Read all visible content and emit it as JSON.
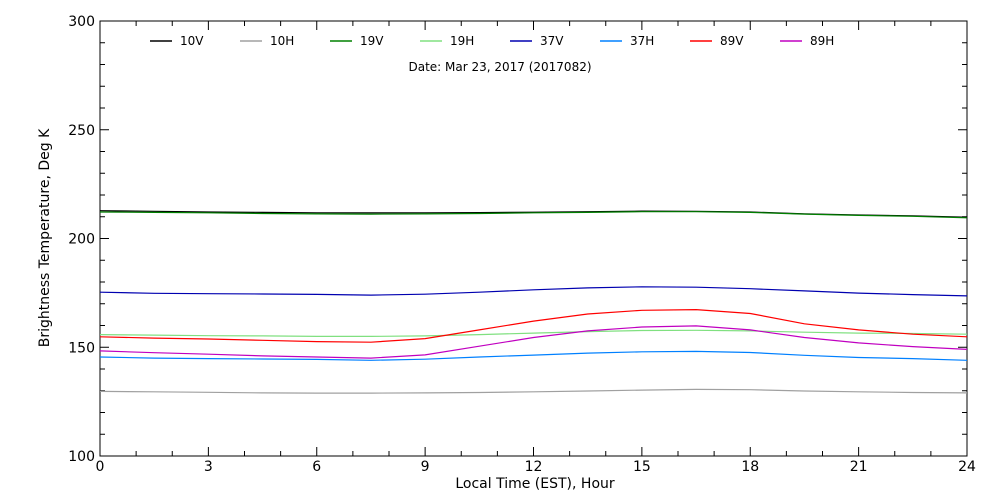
{
  "chart_data": {
    "type": "line",
    "xlabel": "Local Time (EST), Hour",
    "ylabel": "Brightness Temperature, Deg K",
    "annotation": "Date: Mar 23, 2017 (2017082)",
    "xlim": [
      0,
      24
    ],
    "ylim": [
      100,
      300
    ],
    "x_ticks": [
      0,
      3,
      6,
      9,
      12,
      15,
      18,
      21,
      24
    ],
    "y_ticks": [
      100,
      150,
      200,
      250,
      300
    ],
    "grid": false,
    "legend_position": "top",
    "x": [
      0,
      1.5,
      3,
      4.5,
      6,
      7.5,
      9,
      10.5,
      12,
      13.5,
      15,
      16.5,
      18,
      19.5,
      21,
      22.5,
      24
    ],
    "series": [
      {
        "name": "10V",
        "color": "#000000",
        "values": [
          212.8,
          212.5,
          212.2,
          212.0,
          211.8,
          211.8,
          211.8,
          211.9,
          212.1,
          212.3,
          212.6,
          212.5,
          212.2,
          211.3,
          210.8,
          210.4,
          209.8
        ]
      },
      {
        "name": "10H",
        "color": "#a0a0a0",
        "values": [
          129.7,
          129.5,
          129.3,
          129.0,
          128.9,
          128.9,
          129.0,
          129.2,
          129.5,
          129.9,
          130.3,
          130.6,
          130.5,
          129.9,
          129.5,
          129.2,
          129.0
        ]
      },
      {
        "name": "19V",
        "color": "#008000",
        "values": [
          212.2,
          212.0,
          211.8,
          211.5,
          211.3,
          211.2,
          211.3,
          211.5,
          211.8,
          212.0,
          212.3,
          212.3,
          212.0,
          211.2,
          210.6,
          210.2,
          209.5
        ]
      },
      {
        "name": "19H",
        "color": "#80e080",
        "values": [
          155.8,
          155.6,
          155.3,
          155.2,
          155.0,
          155.0,
          155.2,
          155.8,
          156.5,
          157.2,
          157.7,
          157.8,
          157.5,
          156.9,
          156.5,
          156.3,
          156.0
        ]
      },
      {
        "name": "37V",
        "color": "#0000b0",
        "values": [
          175.3,
          174.8,
          174.6,
          174.5,
          174.3,
          174.0,
          174.4,
          175.3,
          176.4,
          177.3,
          177.8,
          177.6,
          176.9,
          175.9,
          174.9,
          174.2,
          173.6
        ]
      },
      {
        "name": "37H",
        "color": "#0080ff",
        "values": [
          145.5,
          145.0,
          144.8,
          144.6,
          144.4,
          144.0,
          144.5,
          145.5,
          146.4,
          147.3,
          147.9,
          148.1,
          147.6,
          146.3,
          145.3,
          144.8,
          144.0
        ]
      },
      {
        "name": "89V",
        "color": "#ff0000",
        "values": [
          154.8,
          154.2,
          153.8,
          153.2,
          152.6,
          152.3,
          154.0,
          158.0,
          162.0,
          165.3,
          167.0,
          167.3,
          165.5,
          160.8,
          158.0,
          156.0,
          154.8
        ]
      },
      {
        "name": "89H",
        "color": "#c000c0",
        "values": [
          148.3,
          147.5,
          146.8,
          146.0,
          145.5,
          145.0,
          146.5,
          150.5,
          154.5,
          157.5,
          159.3,
          159.8,
          158.0,
          154.5,
          152.0,
          150.3,
          149.0
        ]
      }
    ]
  }
}
